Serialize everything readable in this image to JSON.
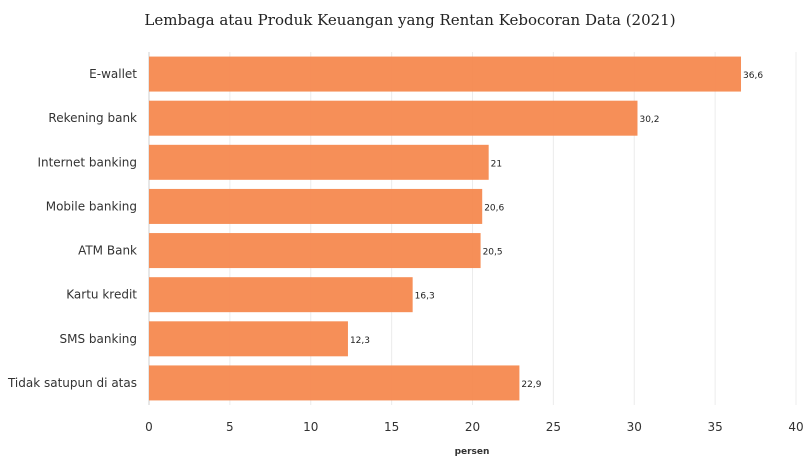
{
  "chart_data": {
    "type": "bar",
    "orientation": "horizontal",
    "title": "Lembaga atau Produk Keuangan yang Rentan Kebocoran Data (2021)",
    "xlabel": "persen",
    "ylabel": "",
    "categories": [
      "E-wallet",
      "Rekening bank",
      "Internet banking",
      "Mobile banking",
      "ATM Bank",
      "Kartu kredit",
      "SMS banking",
      "Tidak satupun di atas"
    ],
    "values": [
      36.6,
      30.2,
      21,
      20.6,
      20.5,
      16.3,
      12.3,
      22.9
    ],
    "value_labels": [
      "36,6",
      "30,2",
      "21",
      "20,6",
      "20,5",
      "16,3",
      "12,3",
      "22,9"
    ],
    "xlim": [
      0,
      40
    ],
    "xticks": [
      0,
      5,
      10,
      15,
      20,
      25,
      30,
      35,
      40
    ],
    "bar_color": "#f5894f",
    "grid": "vertical"
  }
}
